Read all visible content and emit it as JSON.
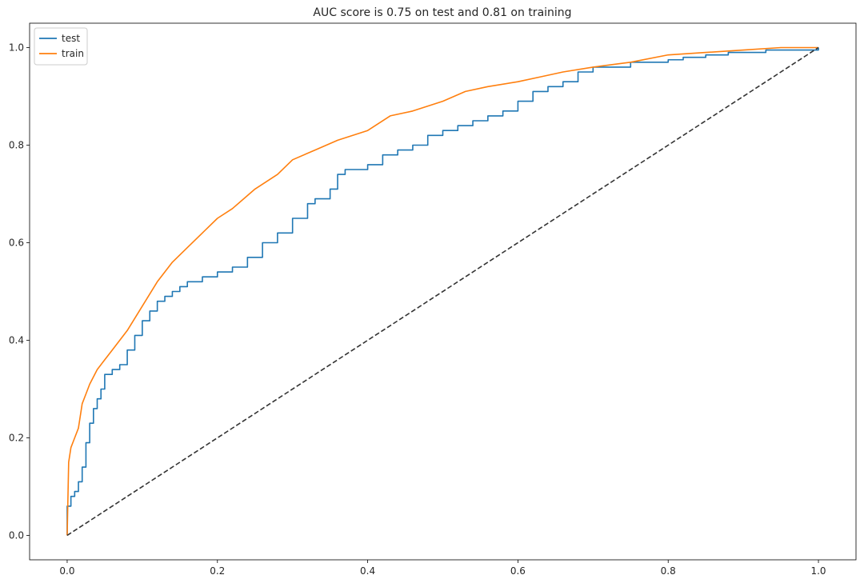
{
  "chart_data": {
    "type": "line",
    "title": "AUC score is 0.75 on test and 0.81 on training",
    "xlabel": "",
    "ylabel": "",
    "xlim": [
      -0.05,
      1.05
    ],
    "ylim": [
      -0.05,
      1.05
    ],
    "xticks": [
      0.0,
      0.2,
      0.4,
      0.6,
      0.8,
      1.0
    ],
    "xtick_labels": [
      "0.0",
      "0.2",
      "0.4",
      "0.6",
      "0.8",
      "1.0"
    ],
    "yticks": [
      0.0,
      0.2,
      0.4,
      0.6,
      0.8,
      1.0
    ],
    "ytick_labels": [
      "0.0",
      "0.2",
      "0.4",
      "0.6",
      "0.8",
      "1.0"
    ],
    "grid": false,
    "legend_position": "top-left",
    "series": [
      {
        "name": "test",
        "color": "#1f77b4",
        "style": "step",
        "x": [
          0.0,
          0.0,
          0.005,
          0.01,
          0.015,
          0.02,
          0.025,
          0.03,
          0.035,
          0.04,
          0.045,
          0.05,
          0.06,
          0.07,
          0.08,
          0.09,
          0.1,
          0.11,
          0.12,
          0.13,
          0.14,
          0.15,
          0.16,
          0.17,
          0.18,
          0.2,
          0.22,
          0.24,
          0.26,
          0.28,
          0.3,
          0.32,
          0.33,
          0.35,
          0.36,
          0.37,
          0.4,
          0.42,
          0.44,
          0.46,
          0.48,
          0.5,
          0.52,
          0.54,
          0.56,
          0.58,
          0.6,
          0.62,
          0.64,
          0.66,
          0.68,
          0.7,
          0.72,
          0.75,
          0.78,
          0.8,
          0.82,
          0.85,
          0.88,
          0.9,
          0.93,
          0.96,
          1.0
        ],
        "y": [
          0.0,
          0.06,
          0.08,
          0.09,
          0.11,
          0.14,
          0.19,
          0.23,
          0.26,
          0.28,
          0.3,
          0.33,
          0.34,
          0.35,
          0.38,
          0.41,
          0.44,
          0.46,
          0.48,
          0.49,
          0.5,
          0.51,
          0.52,
          0.52,
          0.53,
          0.54,
          0.55,
          0.57,
          0.6,
          0.62,
          0.65,
          0.68,
          0.69,
          0.71,
          0.74,
          0.75,
          0.76,
          0.78,
          0.79,
          0.8,
          0.82,
          0.83,
          0.84,
          0.85,
          0.86,
          0.87,
          0.89,
          0.91,
          0.92,
          0.93,
          0.95,
          0.96,
          0.96,
          0.97,
          0.97,
          0.975,
          0.98,
          0.985,
          0.99,
          0.99,
          0.995,
          0.995,
          1.0
        ]
      },
      {
        "name": "train",
        "color": "#ff7f0e",
        "style": "line",
        "x": [
          0.0,
          0.002,
          0.005,
          0.01,
          0.015,
          0.02,
          0.025,
          0.03,
          0.04,
          0.05,
          0.06,
          0.08,
          0.1,
          0.12,
          0.14,
          0.16,
          0.18,
          0.2,
          0.22,
          0.25,
          0.28,
          0.3,
          0.33,
          0.36,
          0.4,
          0.43,
          0.46,
          0.5,
          0.53,
          0.56,
          0.6,
          0.63,
          0.66,
          0.7,
          0.75,
          0.8,
          0.85,
          0.9,
          0.95,
          1.0
        ],
        "y": [
          0.0,
          0.15,
          0.18,
          0.2,
          0.22,
          0.27,
          0.29,
          0.31,
          0.34,
          0.36,
          0.38,
          0.42,
          0.47,
          0.52,
          0.56,
          0.59,
          0.62,
          0.65,
          0.67,
          0.71,
          0.74,
          0.77,
          0.79,
          0.81,
          0.83,
          0.86,
          0.87,
          0.89,
          0.91,
          0.92,
          0.93,
          0.94,
          0.95,
          0.96,
          0.97,
          0.985,
          0.99,
          0.995,
          1.0,
          1.0
        ]
      },
      {
        "name": "",
        "color": "#333333",
        "style": "dashed",
        "x": [
          0.0,
          1.0
        ],
        "y": [
          0.0,
          1.0
        ]
      }
    ]
  }
}
